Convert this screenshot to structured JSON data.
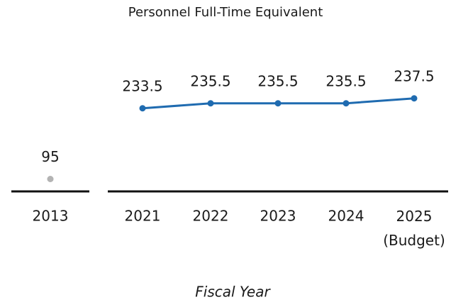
{
  "chart_data": {
    "type": "line",
    "title": "Personnel Full-Time Equivalent",
    "x_label": "Fiscal Year",
    "categories": [
      "2013",
      "2021",
      "2022",
      "2023",
      "2024",
      "2025 (Budget)"
    ],
    "series": [
      {
        "color": "#b3b3b3",
        "values": [
          95,
          null,
          null,
          null,
          null,
          null
        ]
      },
      {
        "color": "#1f6bb0",
        "axis": "y2",
        "values": [
          null,
          233.5,
          235.5,
          235.5,
          235.5,
          237.5
        ]
      }
    ],
    "ylim": [
      90,
      150
    ],
    "y2lim": [
      200,
      260
    ]
  }
}
